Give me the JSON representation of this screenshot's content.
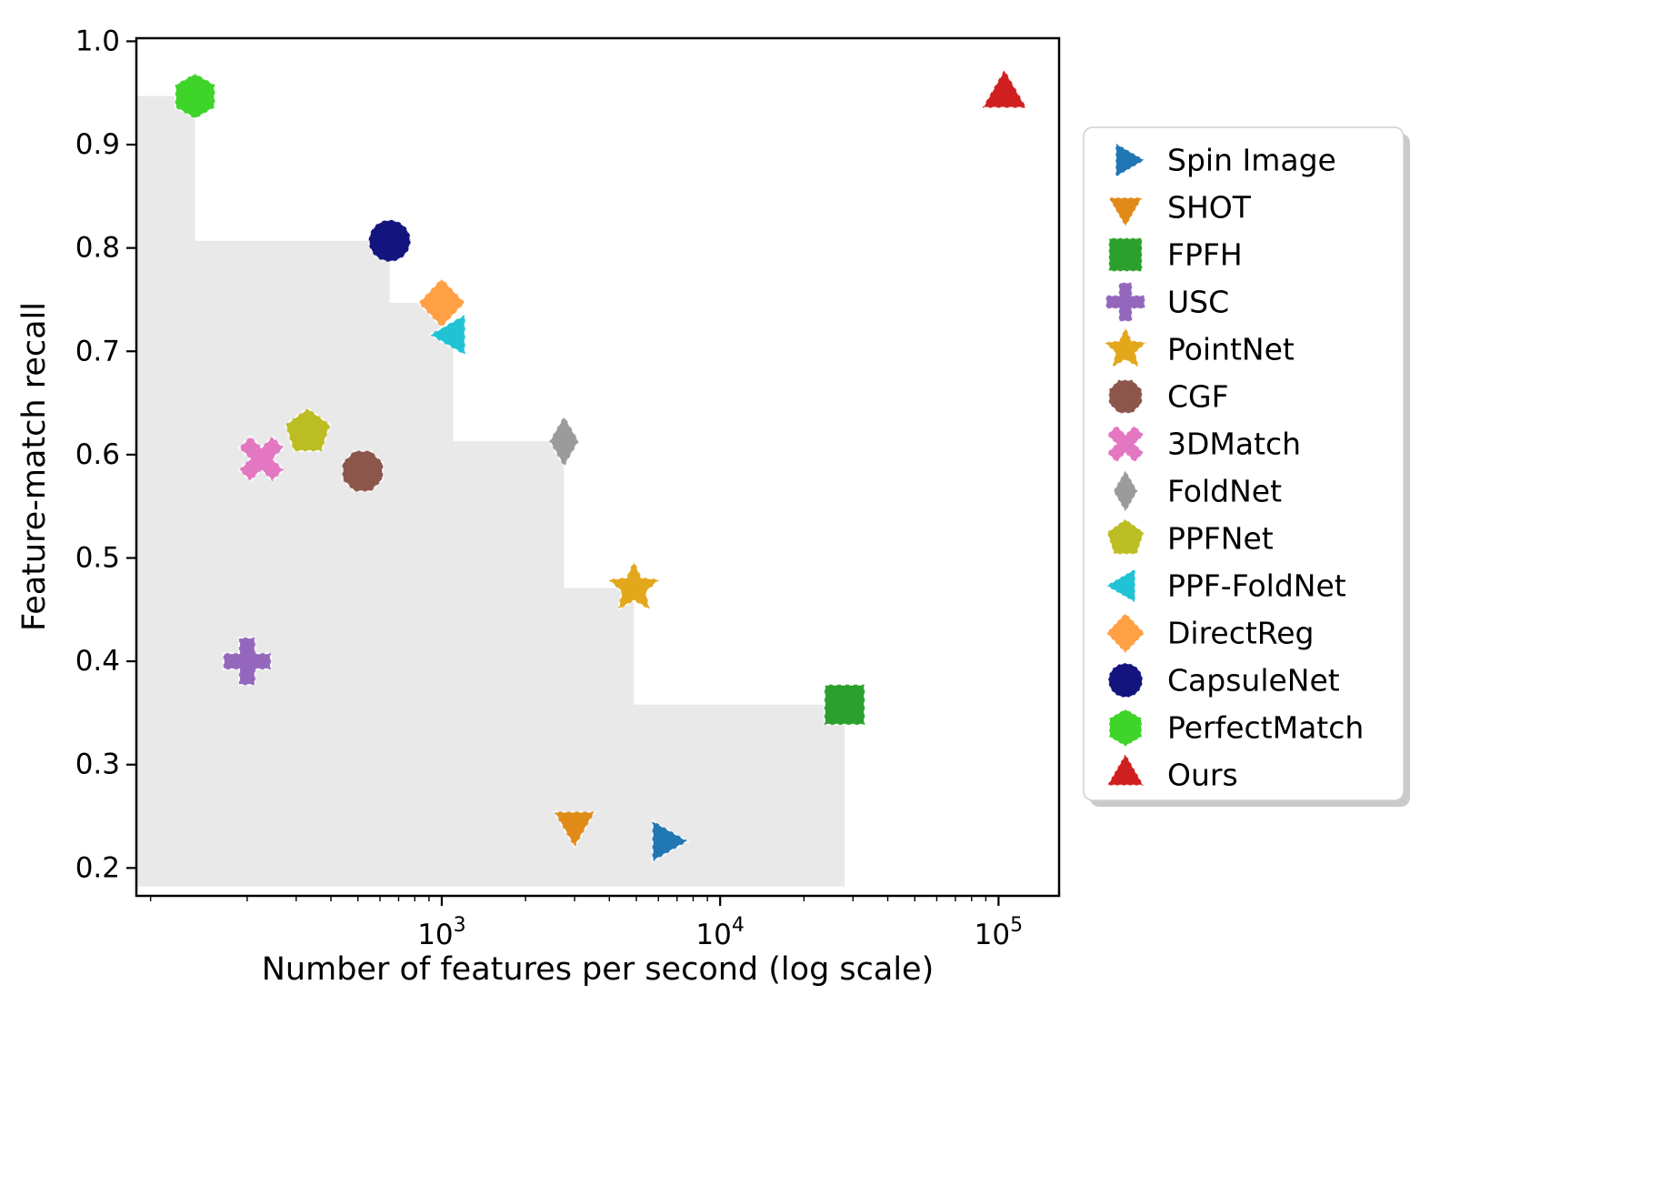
{
  "figure": {
    "background": "#ffffff"
  },
  "chart_data": {
    "type": "scatter",
    "title": "",
    "xlabel": "Number of features per second (log scale)",
    "ylabel": "Feature-match recall",
    "x_scale": "log",
    "x_domain": [
      80,
      165000
    ],
    "y_domain": [
      0.173,
      1.003
    ],
    "x_ticks": [
      {
        "value": 1000,
        "base": "10",
        "exponent": "3"
      },
      {
        "value": 10000,
        "base": "10",
        "exponent": "4"
      },
      {
        "value": 100000,
        "base": "10",
        "exponent": "5"
      }
    ],
    "y_ticks": [
      "0.2",
      "0.3",
      "0.4",
      "0.5",
      "0.6",
      "0.7",
      "0.8",
      "0.9",
      "1.0"
    ],
    "series": [
      {
        "name": "Spin Image",
        "marker": "triangle-right",
        "color": "#2077b4",
        "x": 6300,
        "y": 0.226
      },
      {
        "name": "SHOT",
        "marker": "triangle-down",
        "color": "#e08a17",
        "x": 3000,
        "y": 0.243
      },
      {
        "name": "FPFH",
        "marker": "square",
        "color": "#2ca02c",
        "x": 28000,
        "y": 0.358
      },
      {
        "name": "USC",
        "marker": "plus",
        "color": "#9467bd",
        "x": 200,
        "y": 0.4
      },
      {
        "name": "PointNet",
        "marker": "star",
        "color": "#e3a71c",
        "x": 4900,
        "y": 0.471
      },
      {
        "name": "CGF",
        "marker": "octagon",
        "color": "#8c564b",
        "x": 520,
        "y": 0.584
      },
      {
        "name": "3DMatch",
        "marker": "x",
        "color": "#e377c2",
        "x": 225,
        "y": 0.596
      },
      {
        "name": "FoldNet",
        "marker": "thin-diamond",
        "color": "#9b9b9b",
        "x": 2750,
        "y": 0.613
      },
      {
        "name": "PPFNet",
        "marker": "pentagon",
        "color": "#bcbd22",
        "x": 330,
        "y": 0.622
      },
      {
        "name": "PPF-FoldNet",
        "marker": "triangle-left",
        "color": "#1fc3d4",
        "x": 1100,
        "y": 0.716
      },
      {
        "name": "DirectReg",
        "marker": "diamond",
        "color": "#ffa045",
        "x": 1000,
        "y": 0.747
      },
      {
        "name": "CapsuleNet",
        "marker": "circle",
        "color": "#14147e",
        "x": 650,
        "y": 0.807
      },
      {
        "name": "PerfectMatch",
        "marker": "hexagon",
        "color": "#3fd42a",
        "x": 130,
        "y": 0.947
      },
      {
        "name": "Ours",
        "marker": "triangle-up",
        "color": "#d01f1f",
        "x": 105000,
        "y": 0.948
      }
    ],
    "pareto_region": {
      "color": "#e9e9e9",
      "frontier": [
        "PerfectMatch",
        "CapsuleNet",
        "DirectReg",
        "PPF-FoldNet",
        "FoldNet",
        "PointNet",
        "FPFH"
      ],
      "bottom_y": 0.182
    },
    "legend": {
      "position": "right",
      "entries": [
        "Spin Image",
        "SHOT",
        "FPFH",
        "USC",
        "PointNet",
        "CGF",
        "3DMatch",
        "FoldNet",
        "PPFNet",
        "PPF-FoldNet",
        "DirectReg",
        "CapsuleNet",
        "PerfectMatch",
        "Ours"
      ]
    }
  }
}
